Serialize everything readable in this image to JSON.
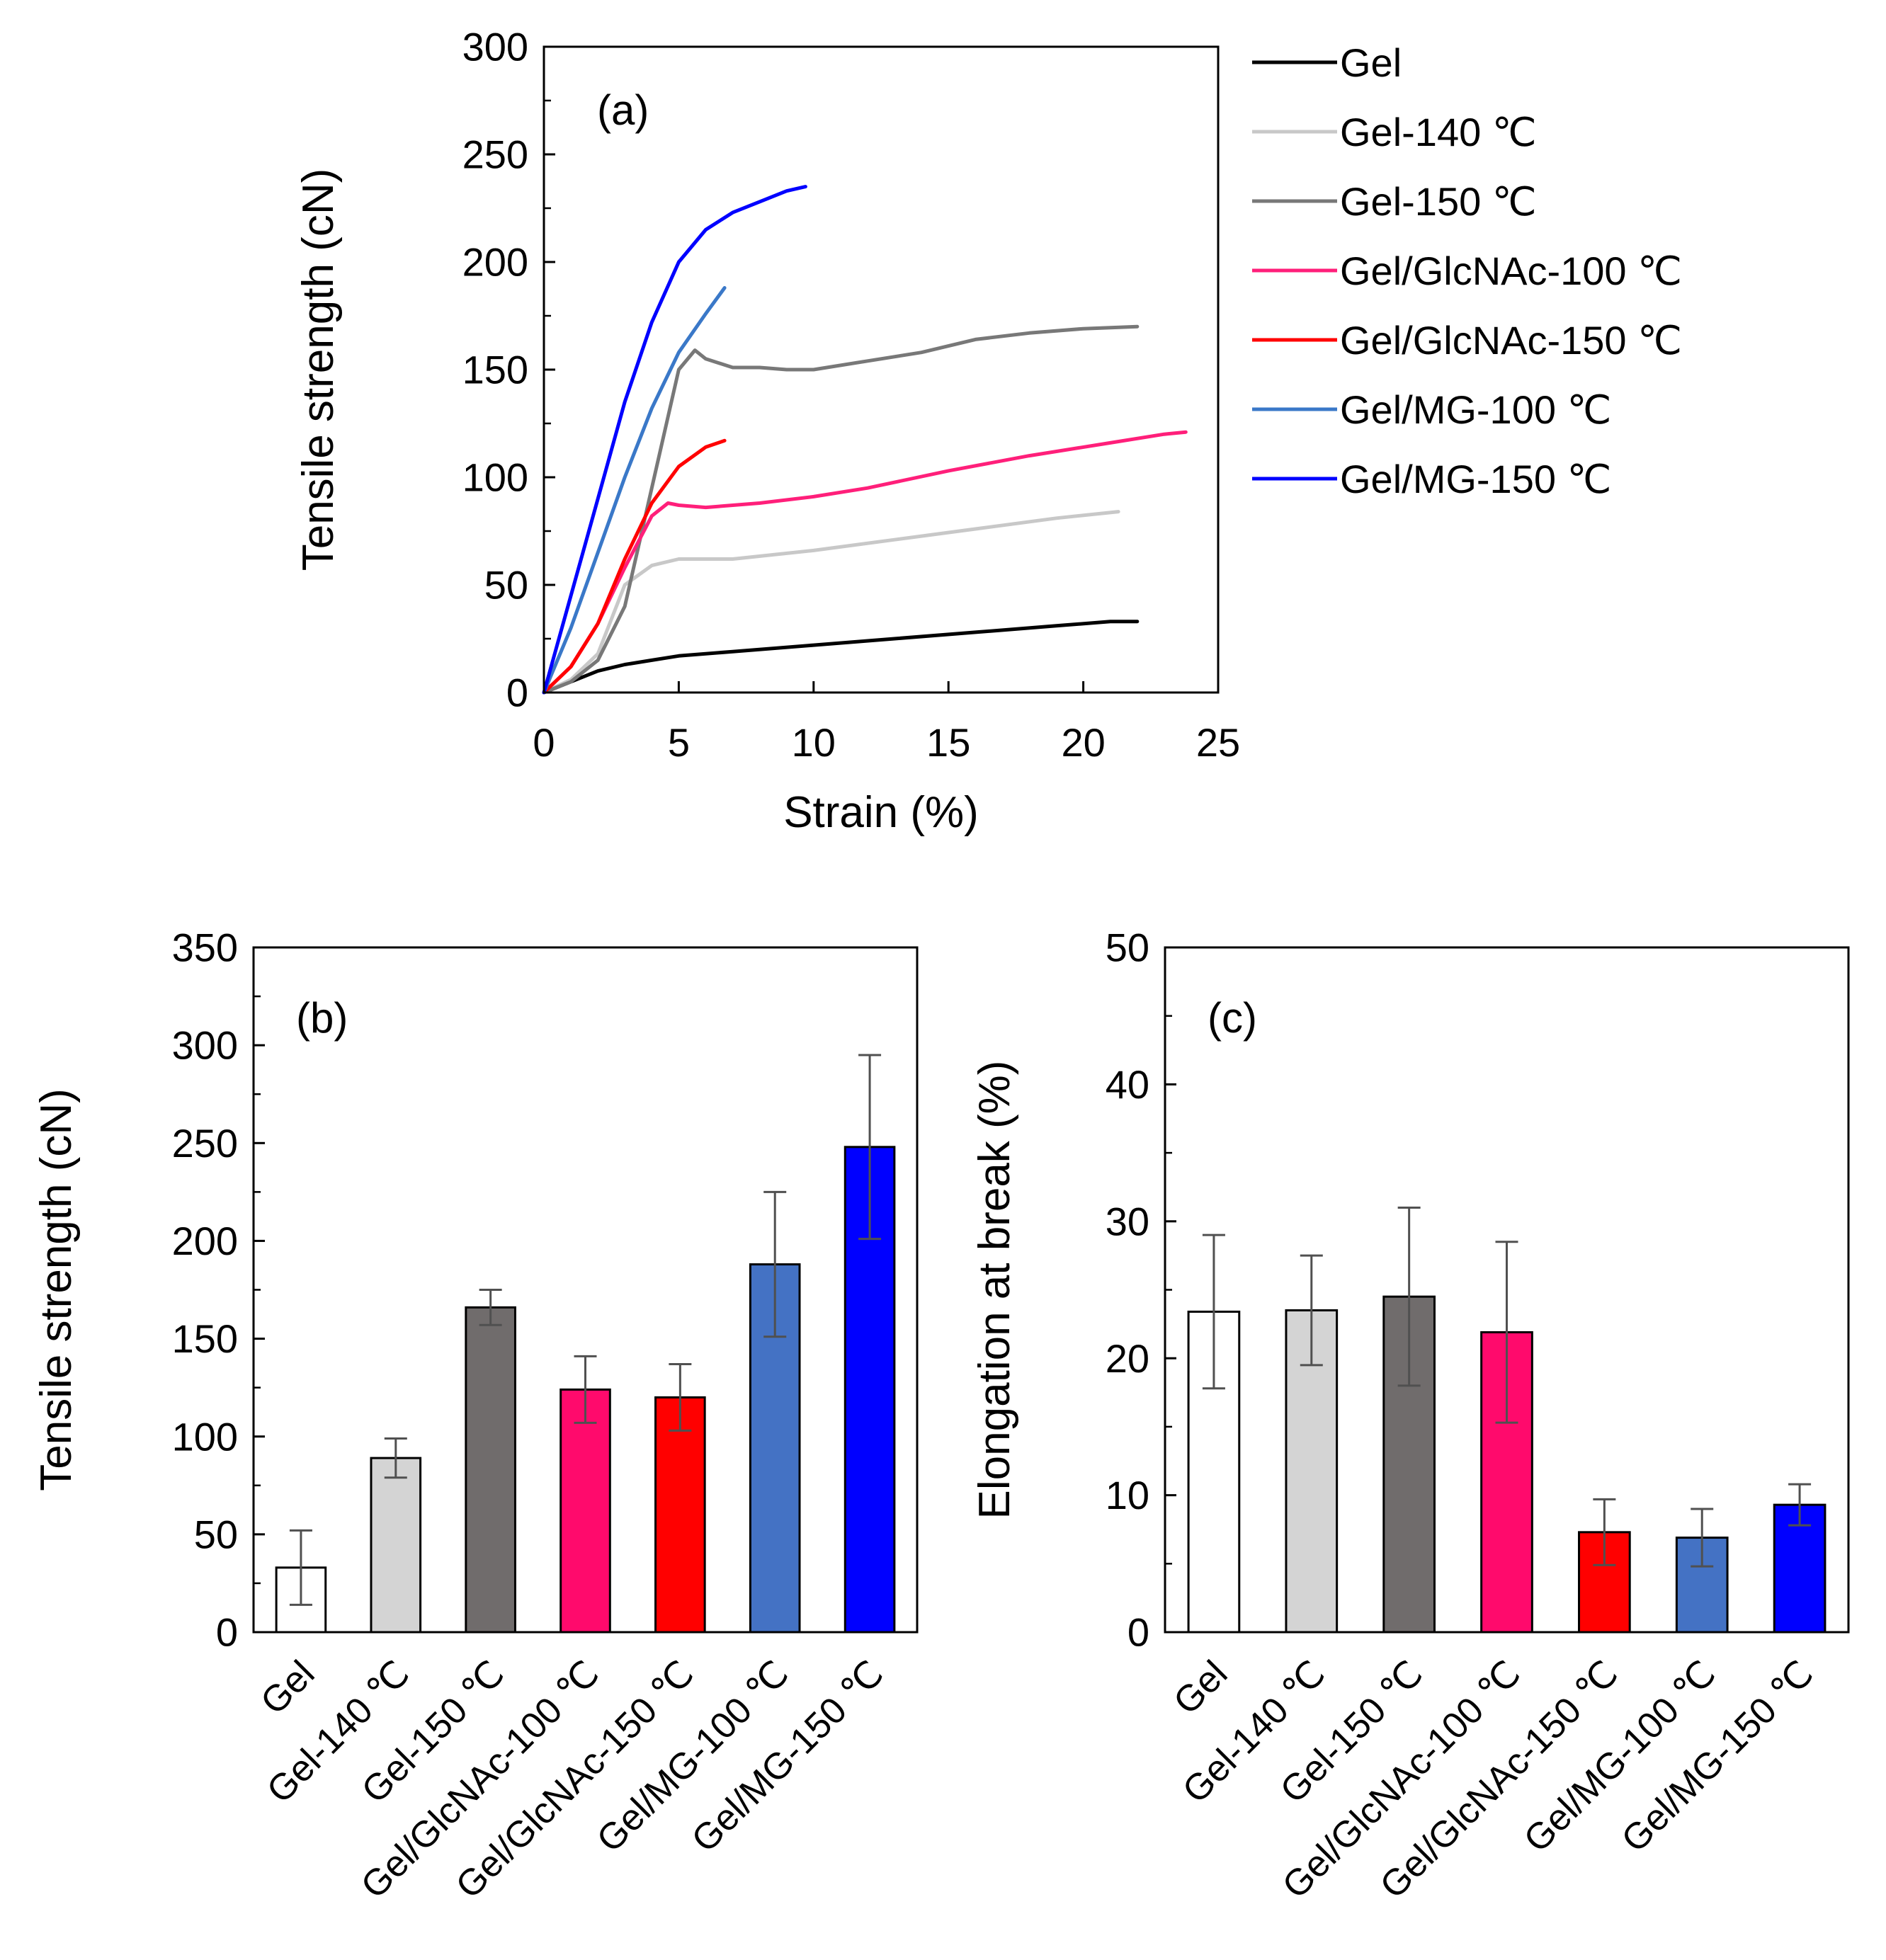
{
  "chart_data": [
    {
      "id": "a",
      "type": "line",
      "panel_label": "(a)",
      "title": "",
      "xlabel": "Strain (%)",
      "ylabel": "Tensile strength (cN)",
      "xlim": [
        0,
        25
      ],
      "ylim": [
        0,
        300
      ],
      "xticks": [
        0,
        5,
        10,
        15,
        20,
        25
      ],
      "yticks": [
        0,
        50,
        100,
        150,
        200,
        250,
        300
      ],
      "grid": false,
      "legend_position": "outside-right",
      "series": [
        {
          "name": "Gel",
          "color": "#000000",
          "points": [
            [
              0,
              0
            ],
            [
              1,
              5
            ],
            [
              2,
              10
            ],
            [
              3,
              13
            ],
            [
              4,
              15
            ],
            [
              5,
              17
            ],
            [
              7,
              19
            ],
            [
              10,
              22
            ],
            [
              13,
              25
            ],
            [
              16,
              28
            ],
            [
              19,
              31
            ],
            [
              21,
              33
            ],
            [
              22,
              33
            ]
          ]
        },
        {
          "name": "Gel-140 ℃",
          "color": "#c8c8c8",
          "points": [
            [
              0,
              0
            ],
            [
              1,
              6
            ],
            [
              2,
              18
            ],
            [
              3,
              50
            ],
            [
              4,
              59
            ],
            [
              5,
              62
            ],
            [
              7,
              62
            ],
            [
              10,
              66
            ],
            [
              13,
              71
            ],
            [
              16,
              76
            ],
            [
              19,
              81
            ],
            [
              21.3,
              84
            ]
          ]
        },
        {
          "name": "Gel-150 ℃",
          "color": "#787878",
          "points": [
            [
              0,
              0
            ],
            [
              1,
              5
            ],
            [
              2,
              15
            ],
            [
              3,
              40
            ],
            [
              4,
              95
            ],
            [
              5,
              150
            ],
            [
              5.6,
              159
            ],
            [
              6,
              155
            ],
            [
              7,
              151
            ],
            [
              8,
              151
            ],
            [
              9,
              150
            ],
            [
              10,
              150
            ],
            [
              12,
              154
            ],
            [
              14,
              158
            ],
            [
              16,
              164
            ],
            [
              18,
              167
            ],
            [
              20,
              169
            ],
            [
              22,
              170
            ]
          ]
        },
        {
          "name": "Gel/GlcNAc-100 ℃",
          "color": "#ff1f7a",
          "points": [
            [
              0,
              0
            ],
            [
              1,
              12
            ],
            [
              2,
              32
            ],
            [
              3,
              58
            ],
            [
              4,
              82
            ],
            [
              4.6,
              88
            ],
            [
              5,
              87
            ],
            [
              6,
              86
            ],
            [
              8,
              88
            ],
            [
              10,
              91
            ],
            [
              12,
              95
            ],
            [
              15,
              103
            ],
            [
              18,
              110
            ],
            [
              21,
              116
            ],
            [
              23,
              120
            ],
            [
              23.8,
              121
            ]
          ]
        },
        {
          "name": "Gel/GlcNAc-150 ℃",
          "color": "#ff0000",
          "points": [
            [
              0,
              0
            ],
            [
              1,
              12
            ],
            [
              2,
              32
            ],
            [
              3,
              62
            ],
            [
              4,
              88
            ],
            [
              5,
              105
            ],
            [
              6,
              114
            ],
            [
              6.7,
              117
            ]
          ]
        },
        {
          "name": "Gel/MG-100 ℃",
          "color": "#3a78c8",
          "points": [
            [
              0,
              0
            ],
            [
              1,
              30
            ],
            [
              2,
              65
            ],
            [
              3,
              100
            ],
            [
              4,
              132
            ],
            [
              5,
              158
            ],
            [
              6,
              176
            ],
            [
              6.7,
              188
            ]
          ]
        },
        {
          "name": "Gel/MG-150 ℃",
          "color": "#0000ff",
          "points": [
            [
              0,
              0
            ],
            [
              1,
              45
            ],
            [
              2,
              90
            ],
            [
              3,
              135
            ],
            [
              4,
              172
            ],
            [
              5,
              200
            ],
            [
              6,
              215
            ],
            [
              7,
              223
            ],
            [
              8,
              228
            ],
            [
              9,
              233
            ],
            [
              9.7,
              235
            ]
          ]
        }
      ]
    },
    {
      "id": "b",
      "type": "bar",
      "panel_label": "(b)",
      "title": "",
      "xlabel": "",
      "ylabel": "Tensile strength (cN)",
      "ylim": [
        0,
        350
      ],
      "yticks": [
        0,
        50,
        100,
        150,
        200,
        250,
        300,
        350
      ],
      "grid": false,
      "categories": [
        "Gel",
        "Gel-140 ℃",
        "Gel-150 ℃",
        "Gel/GlcNAc-100 ℃",
        "Gel/GlcNAc-150 ℃",
        "Gel/MG-100 ℃",
        "Gel/MG-150 ℃"
      ],
      "values": [
        33,
        89,
        166,
        124,
        120,
        188,
        248
      ],
      "errors": [
        19,
        10,
        9,
        17,
        17,
        37,
        47
      ],
      "colors": [
        "#ffffff",
        "#d4d4d4",
        "#706c6c",
        "#ff0a6c",
        "#ff0000",
        "#4472c4",
        "#0000ff"
      ]
    },
    {
      "id": "c",
      "type": "bar",
      "panel_label": "(c)",
      "title": "",
      "xlabel": "",
      "ylabel": "Elongation at break (%)",
      "ylim": [
        0,
        50
      ],
      "yticks": [
        0,
        10,
        20,
        30,
        40,
        50
      ],
      "grid": false,
      "categories": [
        "Gel",
        "Gel-140 ℃",
        "Gel-150 ℃",
        "Gel/GlcNAc-100 ℃",
        "Gel/GlcNAc-150 ℃",
        "Gel/MG-100 ℃",
        "Gel/MG-150 ℃"
      ],
      "values": [
        23.4,
        23.5,
        24.5,
        21.9,
        7.3,
        6.9,
        9.3
      ],
      "errors": [
        5.6,
        4.0,
        6.5,
        6.6,
        2.4,
        2.1,
        1.5
      ],
      "colors": [
        "#ffffff",
        "#d4d4d4",
        "#706c6c",
        "#ff0a6c",
        "#ff0000",
        "#4472c4",
        "#0000ff"
      ]
    }
  ]
}
